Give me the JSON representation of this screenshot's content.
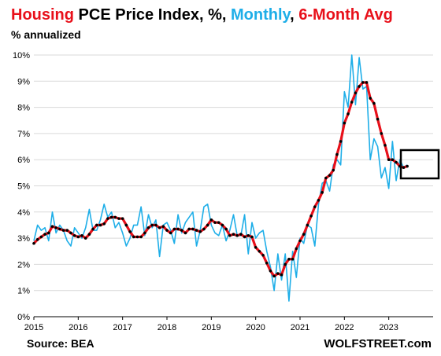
{
  "title_parts": {
    "t1": "Housing",
    "t2": " PCE Price Index, %, ",
    "t3": "Monthly",
    "t4": ", ",
    "t5": "6-Month Avg"
  },
  "subtitle": "% annualized",
  "footer": {
    "source": "Source: BEA",
    "brand": "WOLFSTREET.com"
  },
  "colors": {
    "red": "#e8101a",
    "blue": "#1eaee8",
    "black": "#000000",
    "grid": "#d9d9d9"
  },
  "chart_data": {
    "type": "line",
    "title": "Housing PCE Price Index, %, Monthly, 6-Month Avg",
    "ylabel": "% annualized",
    "ylim": [
      0,
      10
    ],
    "xlim": [
      2015.0,
      2024.0
    ],
    "grid": true,
    "yticks": [
      "0%",
      "1%",
      "2%",
      "3%",
      "4%",
      "5%",
      "6%",
      "7%",
      "8%",
      "9%",
      "10%"
    ],
    "xticks": [
      "2015",
      "2016",
      "2017",
      "2018",
      "2019",
      "2020",
      "2021",
      "2022",
      "2023"
    ],
    "series": [
      {
        "name": "Monthly",
        "color": "#1eaee8",
        "start": 2015.0,
        "step": 0.0833333,
        "values": [
          2.9,
          3.5,
          3.3,
          3.4,
          2.9,
          4.0,
          3.2,
          3.5,
          3.3,
          2.9,
          2.7,
          3.4,
          3.2,
          3.0,
          3.4,
          4.1,
          3.3,
          3.3,
          3.7,
          4.3,
          3.8,
          4.0,
          3.4,
          3.6,
          3.2,
          2.7,
          3.0,
          3.5,
          3.5,
          4.2,
          3.1,
          3.9,
          3.4,
          3.7,
          2.3,
          3.5,
          3.6,
          3.3,
          2.8,
          3.9,
          3.2,
          3.6,
          3.8,
          4.0,
          2.7,
          3.3,
          4.2,
          4.3,
          3.5,
          3.2,
          3.1,
          3.5,
          2.9,
          3.3,
          3.9,
          3.1,
          3.1,
          3.9,
          2.4,
          3.6,
          3.0,
          3.2,
          3.3,
          2.5,
          1.9,
          1.0,
          2.4,
          1.4,
          2.4,
          0.6,
          2.5,
          1.5,
          3.0,
          2.8,
          3.5,
          3.4,
          2.7,
          4.3,
          5.1,
          5.2,
          4.8,
          5.8,
          6.0,
          5.8,
          8.6,
          8.0,
          10.0,
          8.1,
          9.9,
          8.7,
          8.8,
          6.0,
          6.8,
          6.5,
          5.3,
          5.7,
          4.9,
          6.7,
          5.2,
          6.0,
          5.7,
          5.8
        ]
      },
      {
        "name": "6-Month Avg",
        "color": "#e8101a",
        "start": 2015.0,
        "step": 0.0833333,
        "values": [
          2.8,
          2.95,
          3.05,
          3.15,
          3.2,
          3.45,
          3.4,
          3.35,
          3.3,
          3.3,
          3.2,
          3.1,
          3.05,
          3.1,
          3.0,
          3.15,
          3.35,
          3.5,
          3.5,
          3.55,
          3.75,
          3.8,
          3.8,
          3.75,
          3.75,
          3.5,
          3.25,
          3.05,
          3.05,
          3.05,
          3.2,
          3.4,
          3.5,
          3.5,
          3.4,
          3.45,
          3.3,
          3.2,
          3.35,
          3.35,
          3.3,
          3.2,
          3.35,
          3.35,
          3.3,
          3.25,
          3.35,
          3.5,
          3.7,
          3.6,
          3.6,
          3.5,
          3.35,
          3.1,
          3.15,
          3.1,
          3.15,
          3.05,
          3.1,
          3.05,
          2.65,
          2.5,
          2.35,
          2.05,
          1.75,
          1.55,
          1.65,
          1.6,
          2.0,
          2.2,
          2.2,
          2.6,
          2.9,
          3.15,
          3.5,
          3.85,
          4.2,
          4.45,
          4.75,
          5.3,
          5.4,
          5.6,
          6.2,
          6.7,
          7.4,
          7.75,
          8.2,
          8.55,
          8.8,
          8.95,
          8.95,
          8.35,
          8.15,
          7.55,
          7.0,
          6.55,
          6.0,
          6.0,
          5.9,
          5.75,
          5.7,
          5.75
        ]
      }
    ]
  }
}
